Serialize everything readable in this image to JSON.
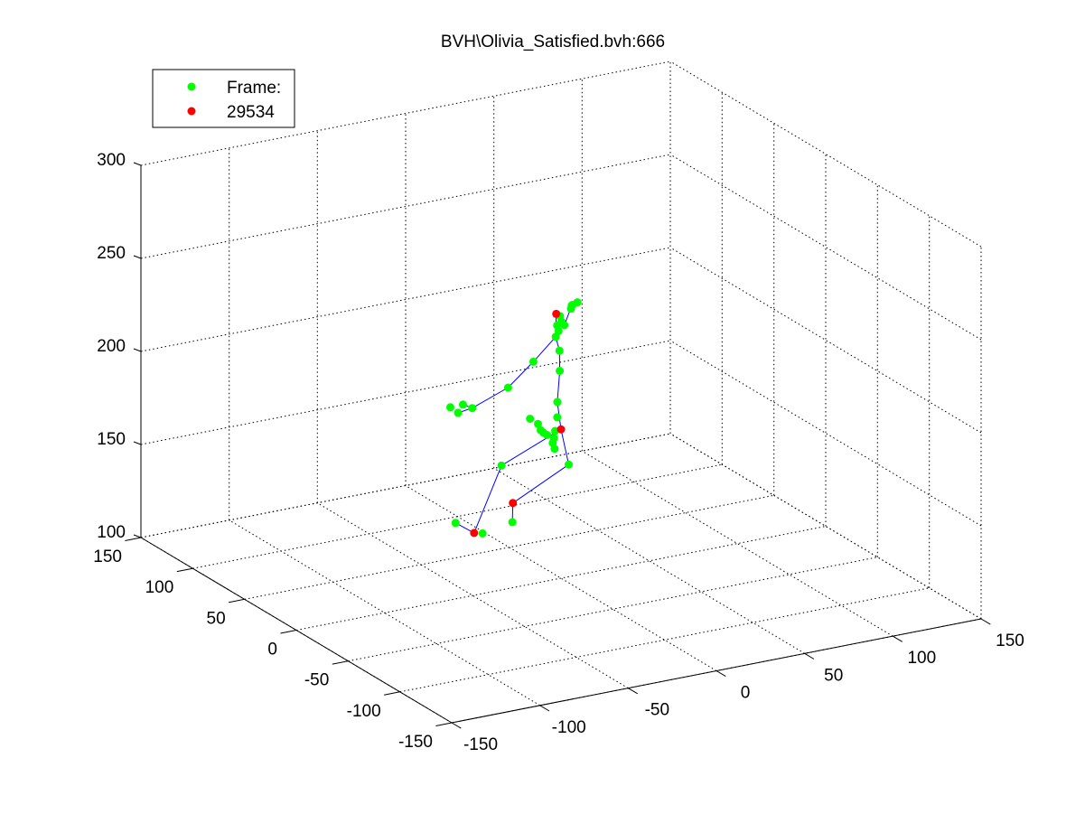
{
  "chart_data": {
    "type": "scatter",
    "title": "BVH\\Olivia_Satisfied.bvh:666",
    "view": "3d",
    "xlabel": "",
    "ylabel": "",
    "zlabel": "",
    "xlim": [
      -150,
      150
    ],
    "ylim": [
      -150,
      150
    ],
    "zlim": [
      100,
      300
    ],
    "x_ticks": [
      "-150",
      "-100",
      "-50",
      "0",
      "50",
      "100",
      "150"
    ],
    "y_ticks": [
      "-150",
      "-100",
      "-50",
      "0",
      "50",
      "100",
      "150"
    ],
    "z_ticks": [
      "100",
      "150",
      "200",
      "250",
      "300"
    ],
    "grid": true,
    "legend_placement": "top-left",
    "colors": {
      "joint": "#00ff00",
      "end_site": "#ff0000",
      "bone": "#0000ff",
      "grid": "#000000"
    },
    "series": [
      {
        "name": "Frame:",
        "color": "#00ff00",
        "points": [
          [
            -10,
            0,
            180
          ],
          [
            -8,
            6,
            179
          ],
          [
            -6,
            12,
            180
          ],
          [
            -7,
            18,
            181
          ],
          [
            -2,
            10,
            174
          ],
          [
            0,
            8,
            170
          ],
          [
            -6,
            -4,
            172
          ],
          [
            -4,
            0,
            176
          ],
          [
            -1,
            4,
            178
          ],
          [
            -1,
            2,
            186
          ],
          [
            2,
            7,
            192
          ],
          [
            4,
            8,
            208
          ],
          [
            5,
            10,
            218
          ],
          [
            4,
            12,
            225
          ],
          [
            6,
            14,
            230
          ],
          [
            10,
            18,
            233
          ],
          [
            8,
            16,
            226
          ],
          [
            12,
            20,
            229
          ],
          [
            -4,
            -10,
            240
          ],
          [
            -8,
            -24,
            256
          ],
          [
            -10,
            -28,
            258
          ],
          [
            -12,
            -30,
            257
          ],
          [
            -6,
            -26,
            258
          ],
          [
            -18,
            -4,
            221
          ],
          [
            -30,
            0,
            208
          ],
          [
            -48,
            4,
            199
          ],
          [
            -52,
            6,
            201
          ],
          [
            -56,
            4,
            198
          ],
          [
            -58,
            8,
            200
          ],
          [
            -48,
            20,
            132
          ],
          [
            -22,
            20,
            158
          ],
          [
            -28,
            28,
            120
          ],
          [
            2,
            -4,
            162
          ],
          [
            -10,
            30,
            122
          ]
        ]
      },
      {
        "name": "29534",
        "color": "#ff0000",
        "points": [
          [
            0,
            0,
            180
          ],
          [
            2,
            8,
            239
          ],
          [
            -34,
            26,
            122
          ],
          [
            -12,
            26,
            134
          ]
        ]
      }
    ],
    "bones": [
      [
        [
          0,
          0,
          180
        ],
        [
          -22,
          20,
          158
        ]
      ],
      [
        [
          -22,
          20,
          158
        ],
        [
          -34,
          26,
          122
        ]
      ],
      [
        [
          -34,
          26,
          122
        ],
        [
          -48,
          20,
          132
        ]
      ],
      [
        [
          0,
          0,
          180
        ],
        [
          2,
          -4,
          162
        ]
      ],
      [
        [
          2,
          -4,
          162
        ],
        [
          -12,
          26,
          134
        ]
      ],
      [
        [
          -12,
          26,
          134
        ],
        [
          -10,
          30,
          122
        ]
      ],
      [
        [
          0,
          0,
          180
        ],
        [
          2,
          7,
          192
        ]
      ],
      [
        [
          2,
          7,
          192
        ],
        [
          4,
          8,
          208
        ]
      ],
      [
        [
          4,
          8,
          208
        ],
        [
          5,
          10,
          218
        ]
      ],
      [
        [
          5,
          10,
          218
        ],
        [
          4,
          12,
          225
        ]
      ],
      [
        [
          4,
          12,
          225
        ],
        [
          2,
          8,
          239
        ]
      ],
      [
        [
          2,
          8,
          239
        ],
        [
          -4,
          -10,
          240
        ]
      ],
      [
        [
          -4,
          -10,
          240
        ],
        [
          -8,
          -24,
          256
        ]
      ],
      [
        [
          4,
          12,
          225
        ],
        [
          -18,
          -4,
          221
        ]
      ],
      [
        [
          -18,
          -4,
          221
        ],
        [
          -30,
          0,
          208
        ]
      ],
      [
        [
          -30,
          0,
          208
        ],
        [
          -48,
          4,
          199
        ]
      ],
      [
        [
          -48,
          4,
          199
        ],
        [
          -52,
          6,
          201
        ]
      ],
      [
        [
          -48,
          4,
          199
        ],
        [
          -56,
          4,
          198
        ]
      ],
      [
        [
          4,
          12,
          225
        ],
        [
          6,
          14,
          230
        ]
      ],
      [
        [
          6,
          14,
          230
        ],
        [
          10,
          18,
          233
        ]
      ]
    ],
    "legend": {
      "entries": [
        "Frame:",
        "29534"
      ]
    }
  }
}
